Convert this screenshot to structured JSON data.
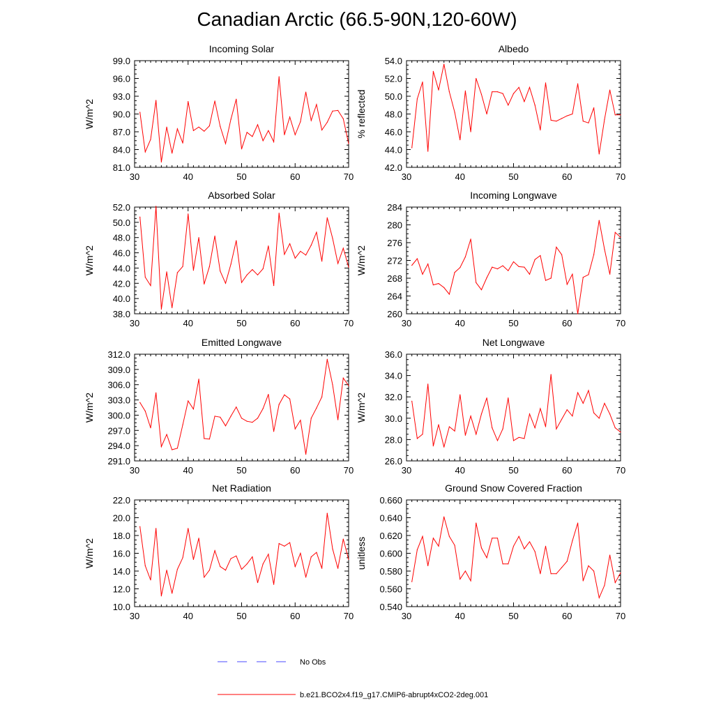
{
  "figure": {
    "title": "Canadian Arctic (66.5-90N,120-60W)"
  },
  "legend": {
    "obs_label": "No Obs",
    "obs_color": "#4a4aff",
    "model_label": "b.e21.BCO2x4.f19_g17.CMIP6-abrupt4xCO2-2deg.001",
    "model_color": "#ff0000"
  },
  "chart_data": [
    {
      "type": "line",
      "title": "Incoming Solar",
      "xlabel": "",
      "ylabel": "W/m^2",
      "xlim": [
        30,
        70
      ],
      "ylim": [
        81,
        99
      ],
      "xticks": [
        30,
        40,
        50,
        60,
        70
      ],
      "xtick_labels": [
        "30",
        "40",
        "50",
        "60",
        "70"
      ],
      "yticks": [
        81,
        84,
        87,
        90,
        93,
        96,
        99
      ],
      "ytick_labels": [
        "81.0",
        "84.0",
        "87.0",
        "90.0",
        "93.0",
        "96.0",
        "99.0"
      ],
      "x": [
        31,
        32,
        33,
        34,
        35,
        36,
        37,
        38,
        39,
        40,
        41,
        42,
        43,
        44,
        45,
        46,
        47,
        48,
        49,
        50,
        51,
        52,
        53,
        54,
        55,
        56,
        57,
        58,
        59,
        60,
        61,
        62,
        63,
        64,
        65,
        66,
        67,
        68,
        69,
        70
      ],
      "series": [
        {
          "name": "b.e21.BCO2x4.f19_g17.CMIP6-abrupt4xCO2-2deg.001",
          "color": "#ff0000",
          "values": [
            90.3,
            83.6,
            85.7,
            92.3,
            81.9,
            87.8,
            83.4,
            87.5,
            85.1,
            92.1,
            87.2,
            87.8,
            87.1,
            88.0,
            92.2,
            87.9,
            85.0,
            89.1,
            92.5,
            84.1,
            86.9,
            86.2,
            88.2,
            85.5,
            87.2,
            85.3,
            96.3,
            86.5,
            89.5,
            86.5,
            88.7,
            93.7,
            88.9,
            91.6,
            87.3,
            88.6,
            90.5,
            90.6,
            89.2,
            85.0
          ]
        }
      ]
    },
    {
      "type": "line",
      "title": "Albedo",
      "xlabel": "",
      "ylabel": "% reflected",
      "xlim": [
        30,
        70
      ],
      "ylim": [
        42,
        54
      ],
      "xticks": [
        30,
        40,
        50,
        60,
        70
      ],
      "xtick_labels": [
        "30",
        "40",
        "50",
        "60",
        "70"
      ],
      "yticks": [
        42,
        44,
        46,
        48,
        50,
        52,
        54
      ],
      "ytick_labels": [
        "42.0",
        "44.0",
        "46.0",
        "48.0",
        "50.0",
        "52.0",
        "54.0"
      ],
      "x": [
        31,
        32,
        33,
        34,
        35,
        36,
        37,
        38,
        39,
        40,
        41,
        42,
        43,
        44,
        45,
        46,
        47,
        48,
        49,
        50,
        51,
        52,
        53,
        54,
        55,
        56,
        57,
        58,
        59,
        60,
        61,
        62,
        63,
        64,
        65,
        66,
        67,
        68,
        69,
        70
      ],
      "series": [
        {
          "name": "b.e21.BCO2x4.f19_g17.CMIP6-abrupt4xCO2-2deg.001",
          "color": "#ff0000",
          "values": [
            44.2,
            49.7,
            51.6,
            43.8,
            52.8,
            50.7,
            53.6,
            50.5,
            48.2,
            45.1,
            50.6,
            46.0,
            52.0,
            50.2,
            48.0,
            50.5,
            50.5,
            50.3,
            49.0,
            50.3,
            51.0,
            49.4,
            51.0,
            49.0,
            46.2,
            51.5,
            47.3,
            47.2,
            47.5,
            47.8,
            48.0,
            51.4,
            47.2,
            47.0,
            48.7,
            43.5,
            47.4,
            50.7,
            47.9,
            47.9
          ]
        }
      ]
    },
    {
      "type": "line",
      "title": "Absorbed Solar",
      "xlabel": "",
      "ylabel": "W/m^2",
      "xlim": [
        30,
        70
      ],
      "ylim": [
        38,
        52
      ],
      "xticks": [
        30,
        40,
        50,
        60,
        70
      ],
      "xtick_labels": [
        "30",
        "40",
        "50",
        "60",
        "70"
      ],
      "yticks": [
        38,
        40,
        42,
        44,
        46,
        48,
        50,
        52
      ],
      "ytick_labels": [
        "38.0",
        "40.0",
        "42.0",
        "44.0",
        "46.0",
        "48.0",
        "50.0",
        "52.0"
      ],
      "x": [
        31,
        32,
        33,
        34,
        35,
        36,
        37,
        38,
        39,
        40,
        41,
        42,
        43,
        44,
        45,
        46,
        47,
        48,
        49,
        50,
        51,
        52,
        53,
        54,
        55,
        56,
        57,
        58,
        59,
        60,
        61,
        62,
        63,
        64,
        65,
        66,
        67,
        68,
        69,
        70
      ],
      "series": [
        {
          "name": "b.e21.BCO2x4.f19_g17.CMIP6-abrupt4xCO2-2deg.001",
          "color": "#ff0000",
          "values": [
            50.7,
            42.8,
            41.7,
            52.1,
            38.6,
            43.5,
            38.8,
            43.4,
            44.2,
            51.1,
            43.7,
            48.0,
            41.9,
            44.2,
            48.2,
            43.6,
            42.0,
            44.5,
            47.6,
            42.1,
            43.1,
            43.8,
            43.1,
            43.9,
            46.9,
            41.7,
            51.2,
            45.8,
            47.2,
            45.3,
            46.2,
            45.7,
            47.0,
            48.7,
            44.9,
            50.6,
            47.9,
            44.6,
            46.6,
            44.1
          ]
        }
      ]
    },
    {
      "type": "line",
      "title": "Incoming Longwave",
      "xlabel": "",
      "ylabel": "W/m^2",
      "xlim": [
        30,
        70
      ],
      "ylim": [
        260,
        284
      ],
      "xticks": [
        30,
        40,
        50,
        60,
        70
      ],
      "xtick_labels": [
        "30",
        "40",
        "50",
        "60",
        "70"
      ],
      "yticks": [
        260,
        264,
        268,
        272,
        276,
        280,
        284
      ],
      "ytick_labels": [
        "260",
        "264",
        "268",
        "272",
        "276",
        "280",
        "284"
      ],
      "x": [
        31,
        32,
        33,
        34,
        35,
        36,
        37,
        38,
        39,
        40,
        41,
        42,
        43,
        44,
        45,
        46,
        47,
        48,
        49,
        50,
        51,
        52,
        53,
        54,
        55,
        56,
        57,
        58,
        59,
        60,
        61,
        62,
        63,
        64,
        65,
        66,
        67,
        68,
        69,
        70
      ],
      "series": [
        {
          "name": "b.e21.BCO2x4.f19_g17.CMIP6-abrupt4xCO2-2deg.001",
          "color": "#ff0000",
          "values": [
            270.9,
            272.4,
            268.9,
            271.2,
            266.5,
            266.8,
            265.9,
            264.4,
            269.3,
            270.4,
            272.8,
            276.8,
            267.0,
            265.4,
            268.1,
            270.5,
            270.1,
            270.8,
            269.7,
            271.7,
            270.6,
            270.5,
            268.9,
            272.2,
            273.1,
            267.5,
            268.0,
            275.0,
            273.3,
            266.6,
            268.9,
            260.0,
            268.2,
            268.8,
            273.3,
            281.0,
            274.5,
            268.9,
            278.3,
            277.2
          ]
        }
      ]
    },
    {
      "type": "line",
      "title": "Emitted Longwave",
      "xlabel": "",
      "ylabel": "W/m^2",
      "xlim": [
        30,
        70
      ],
      "ylim": [
        291,
        312
      ],
      "xticks": [
        30,
        40,
        50,
        60,
        70
      ],
      "xtick_labels": [
        "30",
        "40",
        "50",
        "60",
        "70"
      ],
      "yticks": [
        291,
        294,
        297,
        300,
        303,
        306,
        309,
        312
      ],
      "ytick_labels": [
        "291.0",
        "294.0",
        "297.0",
        "300.0",
        "303.0",
        "306.0",
        "309.0",
        "312.0"
      ],
      "x": [
        31,
        32,
        33,
        34,
        35,
        36,
        37,
        38,
        39,
        40,
        41,
        42,
        43,
        44,
        45,
        46,
        47,
        48,
        49,
        50,
        51,
        52,
        53,
        54,
        55,
        56,
        57,
        58,
        59,
        60,
        61,
        62,
        63,
        64,
        65,
        66,
        67,
        68,
        69,
        70
      ],
      "series": [
        {
          "name": "b.e21.BCO2x4.f19_g17.CMIP6-abrupt4xCO2-2deg.001",
          "color": "#ff0000",
          "values": [
            302.5,
            300.8,
            297.5,
            304.4,
            293.8,
            296.2,
            293.2,
            293.5,
            298.1,
            302.8,
            301.2,
            307.1,
            295.4,
            295.3,
            299.8,
            299.6,
            297.9,
            299.8,
            301.6,
            299.4,
            298.8,
            298.6,
            299.4,
            301.3,
            304.1,
            296.8,
            302.1,
            304.0,
            303.2,
            297.3,
            299.0,
            292.3,
            299.4,
            301.4,
            303.6,
            311.0,
            306.0,
            299.1,
            307.3,
            305.8
          ]
        }
      ]
    },
    {
      "type": "line",
      "title": "Net Longwave",
      "xlabel": "",
      "ylabel": "W/m^2",
      "xlim": [
        30,
        70
      ],
      "ylim": [
        26,
        36
      ],
      "xticks": [
        30,
        40,
        50,
        60,
        70
      ],
      "xtick_labels": [
        "30",
        "40",
        "50",
        "60",
        "70"
      ],
      "yticks": [
        26,
        28,
        30,
        32,
        34,
        36
      ],
      "ytick_labels": [
        "26.0",
        "28.0",
        "30.0",
        "32.0",
        "34.0",
        "36.0"
      ],
      "x": [
        31,
        32,
        33,
        34,
        35,
        36,
        37,
        38,
        39,
        40,
        41,
        42,
        43,
        44,
        45,
        46,
        47,
        48,
        49,
        50,
        51,
        52,
        53,
        54,
        55,
        56,
        57,
        58,
        59,
        60,
        61,
        62,
        63,
        64,
        65,
        66,
        67,
        68,
        69,
        70
      ],
      "series": [
        {
          "name": "b.e21.BCO2x4.f19_g17.CMIP6-abrupt4xCO2-2deg.001",
          "color": "#ff0000",
          "values": [
            31.6,
            28.1,
            28.5,
            33.2,
            27.4,
            29.4,
            27.3,
            29.2,
            28.8,
            32.2,
            28.4,
            30.2,
            28.5,
            30.4,
            31.9,
            29.1,
            27.9,
            29.0,
            31.9,
            27.9,
            28.2,
            28.1,
            30.4,
            29.1,
            30.9,
            29.2,
            34.1,
            29.0,
            29.9,
            30.8,
            30.2,
            32.4,
            31.4,
            32.6,
            30.5,
            30.0,
            31.4,
            30.4,
            29.1,
            28.7
          ]
        }
      ]
    },
    {
      "type": "line",
      "title": "Net Radiation",
      "xlabel": "",
      "ylabel": "W/m^2",
      "xlim": [
        30,
        70
      ],
      "ylim": [
        10,
        22
      ],
      "xticks": [
        30,
        40,
        50,
        60,
        70
      ],
      "xtick_labels": [
        "30",
        "40",
        "50",
        "60",
        "70"
      ],
      "yticks": [
        10,
        12,
        14,
        16,
        18,
        20,
        22
      ],
      "ytick_labels": [
        "10.0",
        "12.0",
        "14.0",
        "16.0",
        "18.0",
        "20.0",
        "22.0"
      ],
      "x": [
        31,
        32,
        33,
        34,
        35,
        36,
        37,
        38,
        39,
        40,
        41,
        42,
        43,
        44,
        45,
        46,
        47,
        48,
        49,
        50,
        51,
        52,
        53,
        54,
        55,
        56,
        57,
        58,
        59,
        60,
        61,
        62,
        63,
        64,
        65,
        66,
        67,
        68,
        69,
        70
      ],
      "series": [
        {
          "name": "b.e21.BCO2x4.f19_g17.CMIP6-abrupt4xCO2-2deg.001",
          "color": "#ff0000",
          "values": [
            19.0,
            14.6,
            13.0,
            18.8,
            11.2,
            14.1,
            11.5,
            14.2,
            15.5,
            18.8,
            15.3,
            17.7,
            13.3,
            14.1,
            16.3,
            14.5,
            14.1,
            15.4,
            15.7,
            14.2,
            14.8,
            15.6,
            12.7,
            14.8,
            15.9,
            12.5,
            17.1,
            16.8,
            17.2,
            14.5,
            16.0,
            13.3,
            15.6,
            16.1,
            14.3,
            20.5,
            16.5,
            14.3,
            17.6,
            15.3
          ]
        }
      ]
    },
    {
      "type": "line",
      "title": "Ground Snow Covered Fraction",
      "xlabel": "",
      "ylabel": "unitless",
      "xlim": [
        30,
        70
      ],
      "ylim": [
        0.54,
        0.66
      ],
      "xticks": [
        30,
        40,
        50,
        60,
        70
      ],
      "xtick_labels": [
        "30",
        "40",
        "50",
        "60",
        "70"
      ],
      "yticks": [
        0.54,
        0.56,
        0.58,
        0.6,
        0.62,
        0.64,
        0.66
      ],
      "ytick_labels": [
        "0.540",
        "0.560",
        "0.580",
        "0.600",
        "0.620",
        "0.640",
        "0.660"
      ],
      "x": [
        31,
        32,
        33,
        34,
        35,
        36,
        37,
        38,
        39,
        40,
        41,
        42,
        43,
        44,
        45,
        46,
        47,
        48,
        49,
        50,
        51,
        52,
        53,
        54,
        55,
        56,
        57,
        58,
        59,
        60,
        61,
        62,
        63,
        64,
        65,
        66,
        67,
        68,
        69,
        70
      ],
      "series": [
        {
          "name": "b.e21.BCO2x4.f19_g17.CMIP6-abrupt4xCO2-2deg.001",
          "color": "#ff0000",
          "values": [
            0.568,
            0.604,
            0.619,
            0.586,
            0.617,
            0.608,
            0.641,
            0.619,
            0.609,
            0.571,
            0.58,
            0.569,
            0.634,
            0.606,
            0.595,
            0.617,
            0.617,
            0.588,
            0.588,
            0.608,
            0.619,
            0.605,
            0.613,
            0.602,
            0.577,
            0.608,
            0.577,
            0.577,
            0.584,
            0.591,
            0.614,
            0.634,
            0.569,
            0.586,
            0.58,
            0.55,
            0.564,
            0.598,
            0.567,
            0.578
          ]
        }
      ]
    }
  ]
}
